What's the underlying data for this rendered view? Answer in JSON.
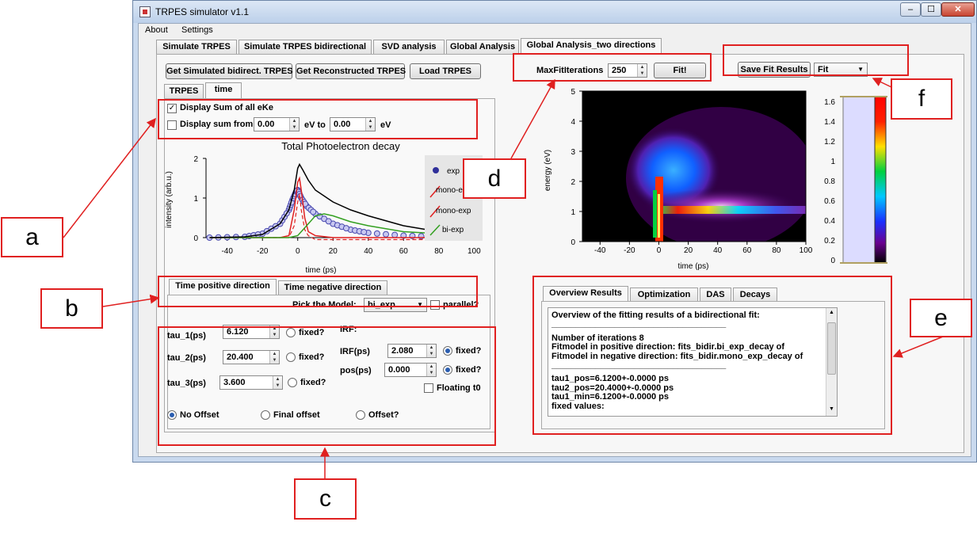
{
  "window": {
    "title": "TRPES simulator v1.1",
    "min": "–",
    "max": "☐",
    "close": "✕"
  },
  "menu": [
    "About",
    "Settings"
  ],
  "main_tabs": [
    "Simulate TRPES",
    "Simulate TRPES bidirectional",
    "SVD analysis",
    "Global Analysis",
    "Global Analysis_two directions"
  ],
  "left": {
    "buttons": [
      "Get Simulated bidirect. TRPES",
      "Get Reconstructed TRPES",
      "Load TRPES"
    ],
    "subtabs": [
      "TRPES",
      "time"
    ],
    "display_sum_all": "Display Sum of all eKe",
    "display_sum_from": "Display sum from",
    "from_value": "0.00",
    "ev_to": "eV to",
    "to_value": "0.00",
    "ev": "eV"
  },
  "decay_plot": {
    "title": "Total Photoelectron decay",
    "xlabel": "time (ps)",
    "ylabel": "intensity (arb.u.)",
    "xticks": [
      "-40",
      "-20",
      "0",
      "20",
      "40",
      "60",
      "80",
      "100"
    ],
    "yticks": [
      "0",
      "1",
      "2"
    ],
    "legend": [
      "exp",
      "mono-e",
      "mono-exp",
      "bi-exp"
    ]
  },
  "chart_data": [
    {
      "type": "line",
      "title": "Total Photoelectron decay",
      "xlabel": "time (ps)",
      "ylabel": "intensity (arb.u.)",
      "xlim": [
        -52,
        103
      ],
      "ylim": [
        0,
        2
      ],
      "series": [
        {
          "name": "exp",
          "x": [
            -50,
            -30,
            -20,
            -10,
            -5,
            -3,
            -1,
            0,
            2,
            5,
            10,
            20,
            30,
            40,
            60,
            80,
            100
          ],
          "y": [
            0.0,
            0.02,
            0.1,
            0.35,
            0.7,
            0.95,
            1.15,
            1.2,
            1.0,
            0.8,
            0.6,
            0.35,
            0.2,
            0.12,
            0.05,
            0.02,
            0.01
          ]
        },
        {
          "name": "mono-e",
          "x": [
            -50,
            -10,
            -5,
            -2,
            0,
            1,
            2,
            4,
            6,
            10,
            20,
            100
          ],
          "y": [
            0,
            0,
            0.05,
            0.7,
            1.4,
            1.5,
            1.2,
            0.5,
            0.15,
            0.05,
            0,
            0
          ]
        },
        {
          "name": "mono-exp",
          "x": [
            -50,
            -5,
            -2,
            0,
            1,
            2,
            4,
            6,
            10,
            20,
            40,
            60,
            100
          ],
          "y": [
            0,
            0,
            0.3,
            0.9,
            1.1,
            0.7,
            0.2,
            0.05,
            -0.05,
            -0.05,
            -0.05,
            -0.05,
            -0.05
          ]
        },
        {
          "name": "bi-exp",
          "x": [
            -50,
            -5,
            0,
            5,
            10,
            15,
            20,
            30,
            40,
            60,
            100
          ],
          "y": [
            0,
            0,
            0.05,
            0.3,
            0.55,
            0.6,
            0.55,
            0.4,
            0.3,
            0.15,
            0.05
          ]
        },
        {
          "name": "",
          "x": [
            -50,
            -30,
            -20,
            -10,
            -5,
            -2,
            0,
            1,
            3,
            6,
            10,
            20,
            30,
            40,
            60,
            80,
            100
          ],
          "y": [
            0,
            0.02,
            0.08,
            0.35,
            0.7,
            1.2,
            1.75,
            1.85,
            1.7,
            1.45,
            1.2,
            0.9,
            0.7,
            0.55,
            0.3,
            0.15,
            0.05
          ]
        }
      ]
    },
    {
      "type": "heatmap",
      "xlabel": "time (ps)",
      "ylabel": "energy (eV)",
      "xlim": [
        -52,
        100
      ],
      "ylim": [
        0,
        5
      ],
      "colorbar": [
        0,
        0.2,
        0.4,
        0.6,
        0.8,
        1,
        1.2,
        1.4,
        1.6
      ]
    }
  ],
  "bottom_tabs": [
    "Time positive direction",
    "Time negative direction"
  ],
  "model": {
    "label": "Pick the Model:",
    "value": "bi_exp",
    "parallel": "parallel?"
  },
  "params": {
    "tau1": {
      "label": "tau_1(ps)",
      "value": "6.120",
      "fixed": "fixed?"
    },
    "tau2": {
      "label": "tau_2(ps)",
      "value": "20.400",
      "fixed": "fixed?"
    },
    "tau3": {
      "label": "tau_3(ps)",
      "value": "3.600",
      "fixed": "fixed?"
    },
    "irf_header": "IRF:",
    "irf": {
      "label": "IRF(ps)",
      "value": "2.080",
      "fixed": "fixed?"
    },
    "pos": {
      "label": "pos(ps)",
      "value": "0.000",
      "fixed": "fixed?"
    },
    "floating": "Floating t0",
    "offsets": [
      "No Offset",
      "Final offset",
      "Offset?"
    ]
  },
  "fit": {
    "label": "MaxFitIterations",
    "value": "250",
    "button": "Fit!"
  },
  "save": {
    "button": "Save Fit Results",
    "combo": "Fit"
  },
  "heatmap": {
    "xlabel": "time (ps)",
    "ylabel": "energy (eV)",
    "xticks": [
      "-40",
      "-20",
      "0",
      "20",
      "40",
      "60",
      "80",
      "100"
    ],
    "yticks": [
      "0",
      "1",
      "2",
      "3",
      "4",
      "5"
    ],
    "cbar_ticks": [
      "0",
      "0.2",
      "0.4",
      "0.6",
      "0.8",
      "1",
      "1.2",
      "1.4",
      "1.6"
    ]
  },
  "results": {
    "tabs": [
      "Overview Results",
      "Optimization",
      "DAS",
      "Decays"
    ],
    "lines": [
      "Overview of the fitting results of a bidirectional fit:",
      "____________________________________",
      "Number of iterations 8",
      "Fitmodel in positive direction: fits_bidir.bi_exp_decay of",
      "Fitmodel in negative direction: fits_bidir.mono_exp_decay of",
      "____________________________________",
      "tau1_pos=6.1200+-0.0000 ps",
      "tau2_pos=20.4000+-0.0000 ps",
      "tau1_min=6.1200+-0.0000 ps",
      "fixed values:",
      "____________________________________"
    ]
  },
  "annotations": [
    "a",
    "b",
    "c",
    "d",
    "e",
    "f"
  ],
  "colors": {
    "annotation": "#e02020",
    "accent": "#2a5db0"
  }
}
